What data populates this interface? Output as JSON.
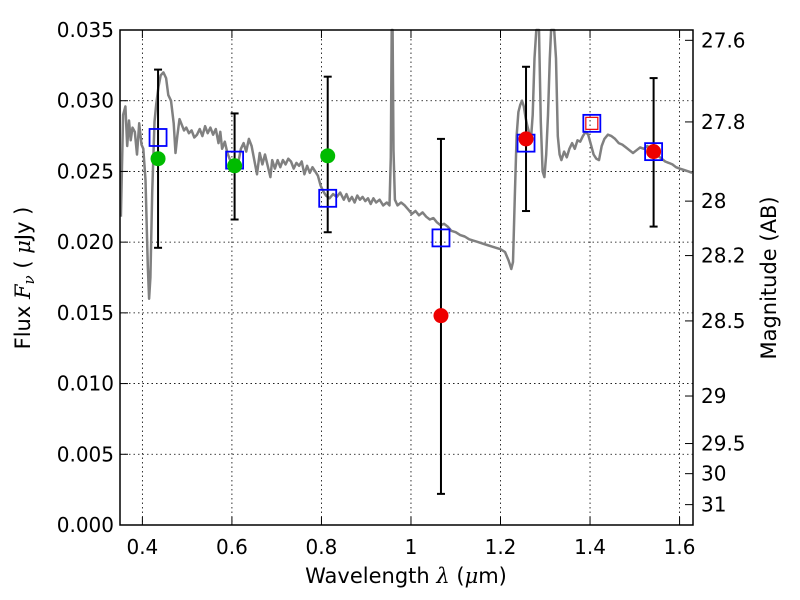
{
  "chart_data": {
    "type": "scatter",
    "xlabel": "Wavelength  λ (μm)",
    "ylabel": "Flux  F_ν  ( μJy )",
    "y2label": "Magnitude (AB)",
    "xlim": [
      0.35,
      1.63
    ],
    "ylim": [
      0.0,
      0.035
    ],
    "grid": true,
    "xticks": [
      0.4,
      0.6,
      0.8,
      1.0,
      1.2,
      1.4,
      1.6
    ],
    "xtick_labels": [
      "0.4",
      "0.6",
      "0.8",
      "1",
      "1.2",
      "1.4",
      "1.6"
    ],
    "yticks": [
      0.0,
      0.005,
      0.01,
      0.015,
      0.02,
      0.025,
      0.03,
      0.035
    ],
    "ytick_labels": [
      "0.000",
      "0.005",
      "0.010",
      "0.015",
      "0.020",
      "0.025",
      "0.030",
      "0.035"
    ],
    "y2ticks": [
      {
        "flux": 0.03427,
        "label": "27.6"
      },
      {
        "flux": 0.0285,
        "label": "27.8"
      },
      {
        "flux": 0.0229,
        "label": "28"
      },
      {
        "flux": 0.01905,
        "label": "28.2"
      },
      {
        "flux": 0.01443,
        "label": "28.5"
      },
      {
        "flux": 0.00912,
        "label": "29"
      },
      {
        "flux": 0.00576,
        "label": "29.5"
      },
      {
        "flux": 0.00363,
        "label": "30"
      },
      {
        "flux": 0.00144,
        "label": "31"
      }
    ],
    "series": [
      {
        "kind": "spectrum",
        "color": "#808080",
        "points": [
          [
            0.352,
            0.0218
          ],
          [
            0.357,
            0.029
          ],
          [
            0.362,
            0.0296
          ],
          [
            0.366,
            0.0268
          ],
          [
            0.37,
            0.0286
          ],
          [
            0.374,
            0.0272
          ],
          [
            0.378,
            0.0281
          ],
          [
            0.383,
            0.0278
          ],
          [
            0.388,
            0.0262
          ],
          [
            0.393,
            0.0284
          ],
          [
            0.398,
            0.0269
          ],
          [
            0.402,
            0.0266
          ],
          [
            0.407,
            0.0244
          ],
          [
            0.412,
            0.0183
          ],
          [
            0.415,
            0.016
          ],
          [
            0.418,
            0.0175
          ],
          [
            0.422,
            0.0235
          ],
          [
            0.427,
            0.0285
          ],
          [
            0.431,
            0.0298
          ],
          [
            0.436,
            0.031
          ],
          [
            0.441,
            0.0318
          ],
          [
            0.447,
            0.032
          ],
          [
            0.453,
            0.0316
          ],
          [
            0.458,
            0.0304
          ],
          [
            0.464,
            0.03
          ],
          [
            0.47,
            0.0284
          ],
          [
            0.474,
            0.0263
          ],
          [
            0.478,
            0.0275
          ],
          [
            0.483,
            0.0287
          ],
          [
            0.488,
            0.0283
          ],
          [
            0.493,
            0.0279
          ],
          [
            0.498,
            0.0281
          ],
          [
            0.504,
            0.0277
          ],
          [
            0.51,
            0.0279
          ],
          [
            0.516,
            0.0274
          ],
          [
            0.522,
            0.0276
          ],
          [
            0.528,
            0.028
          ],
          [
            0.534,
            0.0275
          ],
          [
            0.54,
            0.0282
          ],
          [
            0.546,
            0.0277
          ],
          [
            0.552,
            0.0281
          ],
          [
            0.558,
            0.0276
          ],
          [
            0.564,
            0.028
          ],
          [
            0.57,
            0.027
          ],
          [
            0.574,
            0.0278
          ],
          [
            0.578,
            0.0266
          ],
          [
            0.584,
            0.0271
          ],
          [
            0.59,
            0.0263
          ],
          [
            0.596,
            0.0258
          ],
          [
            0.602,
            0.0255
          ],
          [
            0.608,
            0.0252
          ],
          [
            0.614,
            0.0256
          ],
          [
            0.62,
            0.0266
          ],
          [
            0.626,
            0.027
          ],
          [
            0.632,
            0.0264
          ],
          [
            0.638,
            0.0273
          ],
          [
            0.644,
            0.0268
          ],
          [
            0.65,
            0.0258
          ],
          [
            0.656,
            0.0248
          ],
          [
            0.662,
            0.0263
          ],
          [
            0.668,
            0.0255
          ],
          [
            0.674,
            0.0262
          ],
          [
            0.68,
            0.0254
          ],
          [
            0.686,
            0.0246
          ],
          [
            0.69,
            0.0258
          ],
          [
            0.696,
            0.0252
          ],
          [
            0.702,
            0.0258
          ],
          [
            0.708,
            0.0253
          ],
          [
            0.714,
            0.0258
          ],
          [
            0.72,
            0.0255
          ],
          [
            0.726,
            0.0259
          ],
          [
            0.732,
            0.0257
          ],
          [
            0.738,
            0.0252
          ],
          [
            0.744,
            0.0256
          ],
          [
            0.75,
            0.0254
          ],
          [
            0.756,
            0.0257
          ],
          [
            0.762,
            0.0248
          ],
          [
            0.768,
            0.0254
          ],
          [
            0.774,
            0.0249
          ],
          [
            0.78,
            0.0253
          ],
          [
            0.786,
            0.025
          ],
          [
            0.792,
            0.0247
          ],
          [
            0.798,
            0.024
          ],
          [
            0.804,
            0.0236
          ],
          [
            0.81,
            0.0233
          ],
          [
            0.818,
            0.0231
          ],
          [
            0.826,
            0.0234
          ],
          [
            0.834,
            0.0232
          ],
          [
            0.842,
            0.0235
          ],
          [
            0.85,
            0.023
          ],
          [
            0.856,
            0.0234
          ],
          [
            0.862,
            0.0229
          ],
          [
            0.868,
            0.0232
          ],
          [
            0.874,
            0.0228
          ],
          [
            0.88,
            0.0233
          ],
          [
            0.886,
            0.023
          ],
          [
            0.892,
            0.0232
          ],
          [
            0.898,
            0.0229
          ],
          [
            0.904,
            0.0231
          ],
          [
            0.91,
            0.0227
          ],
          [
            0.916,
            0.0231
          ],
          [
            0.922,
            0.0228
          ],
          [
            0.93,
            0.023
          ],
          [
            0.938,
            0.0226
          ],
          [
            0.946,
            0.0228
          ],
          [
            0.952,
            0.0226
          ],
          [
            0.955,
            0.026
          ],
          [
            0.957,
            0.035
          ],
          [
            0.959,
            0.035
          ],
          [
            0.961,
            0.0265
          ],
          [
            0.964,
            0.023
          ],
          [
            0.97,
            0.0226
          ],
          [
            0.978,
            0.0228
          ],
          [
            0.986,
            0.0226
          ],
          [
            0.994,
            0.0223
          ],
          [
            1.002,
            0.022
          ],
          [
            1.01,
            0.0222
          ],
          [
            1.018,
            0.0219
          ],
          [
            1.026,
            0.0221
          ],
          [
            1.034,
            0.0218
          ],
          [
            1.042,
            0.0216
          ],
          [
            1.05,
            0.0217
          ],
          [
            1.058,
            0.0214
          ],
          [
            1.066,
            0.0212
          ],
          [
            1.074,
            0.0213
          ],
          [
            1.082,
            0.0211
          ],
          [
            1.09,
            0.0208
          ],
          [
            1.1,
            0.0207
          ],
          [
            1.11,
            0.0205
          ],
          [
            1.12,
            0.0204
          ],
          [
            1.13,
            0.0202
          ],
          [
            1.14,
            0.0201
          ],
          [
            1.15,
            0.02
          ],
          [
            1.16,
            0.0199
          ],
          [
            1.17,
            0.0198
          ],
          [
            1.18,
            0.0197
          ],
          [
            1.19,
            0.0196
          ],
          [
            1.2,
            0.0195
          ],
          [
            1.21,
            0.0193
          ],
          [
            1.218,
            0.0187
          ],
          [
            1.224,
            0.0181
          ],
          [
            1.228,
            0.0186
          ],
          [
            1.232,
            0.0232
          ],
          [
            1.236,
            0.0275
          ],
          [
            1.24,
            0.0292
          ],
          [
            1.244,
            0.0297
          ],
          [
            1.248,
            0.03
          ],
          [
            1.252,
            0.0296
          ],
          [
            1.256,
            0.0288
          ],
          [
            1.26,
            0.0282
          ],
          [
            1.264,
            0.0277
          ],
          [
            1.268,
            0.0272
          ],
          [
            1.272,
            0.029
          ],
          [
            1.276,
            0.033
          ],
          [
            1.28,
            0.035
          ],
          [
            1.286,
            0.035
          ],
          [
            1.29,
            0.0285
          ],
          [
            1.294,
            0.025
          ],
          [
            1.298,
            0.0246
          ],
          [
            1.302,
            0.0262
          ],
          [
            1.306,
            0.029
          ],
          [
            1.31,
            0.033
          ],
          [
            1.313,
            0.035
          ],
          [
            1.32,
            0.035
          ],
          [
            1.324,
            0.033
          ],
          [
            1.328,
            0.0275
          ],
          [
            1.332,
            0.0262
          ],
          [
            1.336,
            0.0258
          ],
          [
            1.342,
            0.0264
          ],
          [
            1.348,
            0.026
          ],
          [
            1.354,
            0.0266
          ],
          [
            1.36,
            0.027
          ],
          [
            1.366,
            0.0266
          ],
          [
            1.372,
            0.0272
          ],
          [
            1.378,
            0.0271
          ],
          [
            1.384,
            0.0275
          ],
          [
            1.39,
            0.0278
          ],
          [
            1.396,
            0.0276
          ],
          [
            1.402,
            0.0269
          ],
          [
            1.408,
            0.0262
          ],
          [
            1.414,
            0.0259
          ],
          [
            1.42,
            0.0258
          ],
          [
            1.426,
            0.0268
          ],
          [
            1.432,
            0.0273
          ],
          [
            1.44,
            0.0276
          ],
          [
            1.448,
            0.0275
          ],
          [
            1.456,
            0.0273
          ],
          [
            1.464,
            0.027
          ],
          [
            1.472,
            0.0269
          ],
          [
            1.48,
            0.0267
          ],
          [
            1.488,
            0.0265
          ],
          [
            1.496,
            0.0263
          ],
          [
            1.504,
            0.0265
          ],
          [
            1.512,
            0.0267
          ],
          [
            1.52,
            0.0266
          ],
          [
            1.528,
            0.0268
          ],
          [
            1.536,
            0.0266
          ],
          [
            1.544,
            0.0263
          ],
          [
            1.552,
            0.0261
          ],
          [
            1.56,
            0.0259
          ],
          [
            1.568,
            0.0257
          ],
          [
            1.576,
            0.0256
          ],
          [
            1.584,
            0.0255
          ],
          [
            1.592,
            0.0253
          ],
          [
            1.6,
            0.0252
          ],
          [
            1.61,
            0.0251
          ],
          [
            1.62,
            0.025
          ],
          [
            1.628,
            0.0249
          ]
        ]
      },
      {
        "kind": "model-photometry",
        "marker": "open-square",
        "color": "#0000ff",
        "points": [
          {
            "x": 0.435,
            "y": 0.0274
          },
          {
            "x": 0.606,
            "y": 0.0258
          },
          {
            "x": 0.814,
            "y": 0.0231
          },
          {
            "x": 1.067,
            "y": 0.0203
          },
          {
            "x": 1.257,
            "y": 0.027
          },
          {
            "x": 1.404,
            "y": 0.0284
          },
          {
            "x": 1.542,
            "y": 0.0264
          }
        ]
      },
      {
        "kind": "observed-detected",
        "marker": "filled-circle",
        "color": "#00bb00",
        "points": [
          {
            "x": 0.435,
            "y": 0.0259,
            "err_low": 0.0196,
            "err_high": 0.0322
          },
          {
            "x": 0.606,
            "y": 0.0254,
            "err_low": 0.0216,
            "err_high": 0.0291
          },
          {
            "x": 0.814,
            "y": 0.0261,
            "err_low": 0.0207,
            "err_high": 0.0317
          }
        ]
      },
      {
        "kind": "observed-other",
        "marker": "filled-circle",
        "color": "#ee0000",
        "points": [
          {
            "x": 1.067,
            "y": 0.0148,
            "err_low": 0.0022,
            "err_high": 0.0273
          },
          {
            "x": 1.257,
            "y": 0.0273,
            "err_low": 0.0222,
            "err_high": 0.0324
          },
          {
            "x": 1.404,
            "y": 0.0284,
            "marker": "open-square-small"
          },
          {
            "x": 1.542,
            "y": 0.0264,
            "err_low": 0.0211,
            "err_high": 0.0316
          }
        ]
      }
    ]
  }
}
